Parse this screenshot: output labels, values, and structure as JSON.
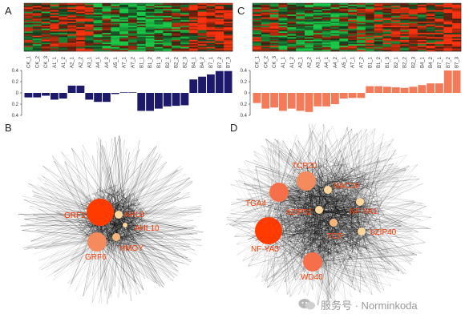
{
  "panels": {
    "a_letter": "A",
    "b_letter": "B",
    "c_letter": "C",
    "d_letter": "D"
  },
  "watermark": "服务号 · Norminkoda",
  "chart_data": [
    {
      "type": "bar",
      "panel": "A",
      "categories": [
        "CK_1",
        "CK_2",
        "CK_3",
        "A1_1",
        "A1_2",
        "A2_1",
        "A2_2",
        "A3_1",
        "A4_1",
        "A4_2",
        "A5_1",
        "A7_1",
        "A7_2",
        "B1_1",
        "B1_2",
        "B1_3",
        "B2_1",
        "B2_2",
        "B2_3",
        "B4_1",
        "B4_2",
        "B7_1",
        "B7_2",
        "B7_3"
      ],
      "values": [
        -0.08,
        -0.08,
        -0.05,
        -0.12,
        -0.1,
        0.13,
        0.13,
        -0.12,
        -0.16,
        -0.16,
        -0.02,
        0.01,
        0.01,
        -0.32,
        -0.32,
        -0.28,
        -0.24,
        -0.23,
        -0.22,
        0.24,
        0.29,
        0.33,
        0.39,
        0.39
      ],
      "yticks": [
        "0.4",
        "0.2",
        "0",
        "0.2",
        "0.4"
      ],
      "ylim": [
        -0.4,
        0.4
      ],
      "bar_color": "#1d1a6b",
      "heatmap": "red-green expression heatmap above the bars"
    },
    {
      "type": "bar",
      "panel": "C",
      "categories": [
        "CK_1",
        "CK_2",
        "CK_3",
        "A1_1",
        "A1_2",
        "A2_1",
        "A2_2",
        "A3_1",
        "A4_1",
        "A4_2",
        "A5_1",
        "A7_1",
        "A7_2",
        "B1_1",
        "B1_2",
        "B1_3",
        "B2_1",
        "B2_2",
        "B2_3",
        "B4_1",
        "B4_2",
        "B7_1",
        "B7_2",
        "B7_3"
      ],
      "values": [
        -0.18,
        -0.28,
        -0.26,
        -0.32,
        -0.28,
        -0.32,
        -0.34,
        -0.24,
        -0.24,
        -0.2,
        -0.1,
        -0.09,
        -0.09,
        0.12,
        0.12,
        0.11,
        0.1,
        0.09,
        0.11,
        0.14,
        0.17,
        0.17,
        0.4,
        0.4
      ],
      "yticks": [
        "0.4",
        "0.2",
        "0",
        "0.2",
        "0.4"
      ],
      "ylim": [
        -0.4,
        0.4
      ],
      "bar_color": "#f47b5a",
      "heatmap": "red-green expression heatmap above the bars"
    }
  ],
  "networks": {
    "b": {
      "nodes": [
        {
          "label": "GRF2",
          "size": "large",
          "color": "#ff3b00"
        },
        {
          "label": "AHL8",
          "size": "small",
          "color": "#ffd79a"
        },
        {
          "label": "AHL10",
          "size": "tiny",
          "color": "#ffd79a"
        },
        {
          "label": "GRF6",
          "size": "medium",
          "color": "#f58a5c"
        },
        {
          "label": "HMGY",
          "size": "small",
          "color": "#f8b57c"
        }
      ]
    },
    "d": {
      "nodes": [
        {
          "label": "TCP20",
          "size": "medium",
          "color": "#f58a5c"
        },
        {
          "label": "NAC19",
          "size": "small",
          "color": "#ffd79a"
        },
        {
          "label": "TGA4",
          "size": "medium",
          "color": "#f5704a"
        },
        {
          "label": "bZIP52",
          "size": "small",
          "color": "#ffd79a"
        },
        {
          "label": "NF-YA1",
          "size": "small",
          "color": "#ffd79a"
        },
        {
          "label": "TCP",
          "size": "small",
          "color": "#f8b57c"
        },
        {
          "label": "bZIP40",
          "size": "small",
          "color": "#ffd79a"
        },
        {
          "label": "NF-YA3",
          "size": "large",
          "color": "#ff3b00"
        },
        {
          "label": "WD40",
          "size": "medium",
          "color": "#f5704a"
        }
      ]
    }
  }
}
